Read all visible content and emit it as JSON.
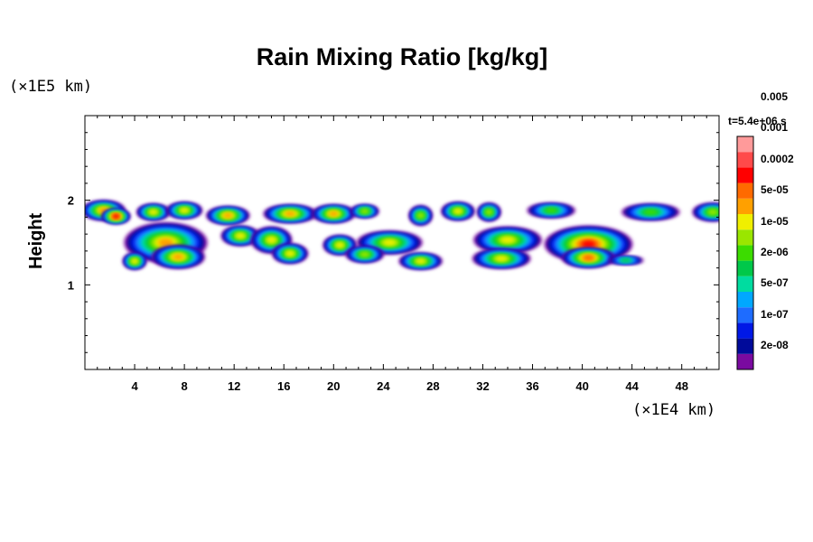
{
  "chart_data": {
    "type": "heatmap",
    "title": "Rain Mixing Ratio [kg/kg]",
    "xlabel": "",
    "ylabel": "Height",
    "x_unit": "(×1E4 km)",
    "y_unit": "(×1E5 km)",
    "time_label": "t=5.4e+06 s",
    "xlim": [
      0,
      51
    ],
    "ylim": [
      0,
      3
    ],
    "x_ticks": [
      4,
      8,
      12,
      16,
      20,
      24,
      28,
      32,
      36,
      40,
      44,
      48
    ],
    "y_ticks": [
      1,
      2
    ],
    "legend": {
      "placement": "right",
      "levels": [
        "2e-08",
        "1e-07",
        "5e-07",
        "2e-06",
        "1e-05",
        "5e-05",
        "0.0002",
        "0.001",
        "0.005"
      ],
      "colors": [
        "#7a0aa0",
        "#000a9a",
        "#0018e6",
        "#1e6cff",
        "#00a8ff",
        "#00dca0",
        "#00c84a",
        "#3cdc00",
        "#9ae600",
        "#f0ef00",
        "#ffa000",
        "#ff6a00",
        "#ff0000",
        "#ff4a4a",
        "#ff9a9a"
      ]
    },
    "cells": [
      {
        "x": 1.5,
        "y": 1.88,
        "rx": 1.6,
        "ry": 0.1,
        "level": 10
      },
      {
        "x": 2.5,
        "y": 1.81,
        "rx": 1.0,
        "ry": 0.07,
        "level": 12
      },
      {
        "x": 5.5,
        "y": 1.86,
        "rx": 1.2,
        "ry": 0.08,
        "level": 9
      },
      {
        "x": 8.0,
        "y": 1.88,
        "rx": 1.3,
        "ry": 0.08,
        "level": 9
      },
      {
        "x": 11.5,
        "y": 1.82,
        "rx": 1.6,
        "ry": 0.09,
        "level": 10
      },
      {
        "x": 16.5,
        "y": 1.84,
        "rx": 2.0,
        "ry": 0.09,
        "level": 10
      },
      {
        "x": 20.0,
        "y": 1.84,
        "rx": 1.6,
        "ry": 0.09,
        "level": 10
      },
      {
        "x": 22.5,
        "y": 1.87,
        "rx": 1.0,
        "ry": 0.06,
        "level": 8
      },
      {
        "x": 27.0,
        "y": 1.82,
        "rx": 0.8,
        "ry": 0.1,
        "level": 8
      },
      {
        "x": 30.0,
        "y": 1.87,
        "rx": 1.2,
        "ry": 0.09,
        "level": 9
      },
      {
        "x": 32.5,
        "y": 1.86,
        "rx": 0.8,
        "ry": 0.09,
        "level": 8
      },
      {
        "x": 37.5,
        "y": 1.88,
        "rx": 1.8,
        "ry": 0.07,
        "level": 7
      },
      {
        "x": 45.5,
        "y": 1.86,
        "rx": 2.2,
        "ry": 0.08,
        "level": 7
      },
      {
        "x": 50.5,
        "y": 1.86,
        "rx": 1.5,
        "ry": 0.09,
        "level": 8
      },
      {
        "x": 6.5,
        "y": 1.5,
        "rx": 3.2,
        "ry": 0.22,
        "level": 10
      },
      {
        "x": 7.5,
        "y": 1.33,
        "rx": 2.0,
        "ry": 0.12,
        "level": 10
      },
      {
        "x": 4.0,
        "y": 1.28,
        "rx": 0.8,
        "ry": 0.08,
        "level": 9
      },
      {
        "x": 12.5,
        "y": 1.58,
        "rx": 1.4,
        "ry": 0.1,
        "level": 9
      },
      {
        "x": 15.0,
        "y": 1.53,
        "rx": 1.5,
        "ry": 0.14,
        "level": 9
      },
      {
        "x": 16.5,
        "y": 1.37,
        "rx": 1.3,
        "ry": 0.1,
        "level": 9
      },
      {
        "x": 20.5,
        "y": 1.47,
        "rx": 1.2,
        "ry": 0.1,
        "level": 9
      },
      {
        "x": 24.5,
        "y": 1.5,
        "rx": 2.5,
        "ry": 0.12,
        "level": 9
      },
      {
        "x": 22.5,
        "y": 1.36,
        "rx": 1.4,
        "ry": 0.08,
        "level": 8
      },
      {
        "x": 27.0,
        "y": 1.28,
        "rx": 1.6,
        "ry": 0.08,
        "level": 9
      },
      {
        "x": 34.0,
        "y": 1.53,
        "rx": 2.6,
        "ry": 0.14,
        "level": 9
      },
      {
        "x": 33.5,
        "y": 1.31,
        "rx": 2.2,
        "ry": 0.1,
        "level": 9
      },
      {
        "x": 40.5,
        "y": 1.48,
        "rx": 3.4,
        "ry": 0.2,
        "level": 12
      },
      {
        "x": 40.5,
        "y": 1.32,
        "rx": 2.0,
        "ry": 0.1,
        "level": 11
      },
      {
        "x": 43.5,
        "y": 1.29,
        "rx": 1.3,
        "ry": 0.03,
        "level": 6
      }
    ]
  }
}
